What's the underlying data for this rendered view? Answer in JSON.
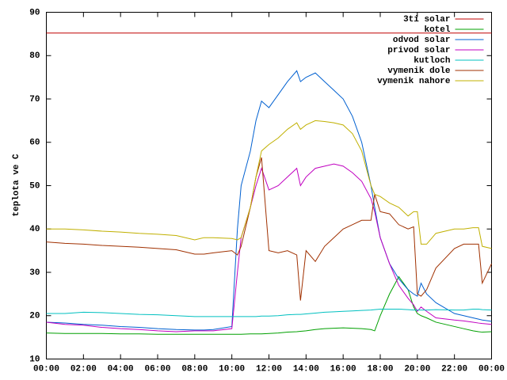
{
  "chart_data": {
    "type": "line",
    "y_label": "teplota ve C",
    "x": [
      0,
      1,
      2,
      3,
      4,
      5,
      6,
      7,
      8,
      8.5,
      9,
      10,
      10.3,
      10.5,
      11,
      11.3,
      11.6,
      12,
      12.5,
      13,
      13.5,
      13.7,
      14,
      14.5,
      15,
      15.5,
      16,
      16.5,
      17,
      17.5,
      17.7,
      18,
      18.5,
      19,
      19.5,
      19.8,
      20,
      20.2,
      20.5,
      21,
      22,
      22.5,
      23,
      23.3,
      23.5,
      24
    ],
    "xlim": [
      0,
      24
    ],
    "xticks": [
      {
        "value": 0,
        "label": "00:00"
      },
      {
        "value": 2,
        "label": "02:00"
      },
      {
        "value": 4,
        "label": "04:00"
      },
      {
        "value": 6,
        "label": "06:00"
      },
      {
        "value": 8,
        "label": "08:00"
      },
      {
        "value": 10,
        "label": "10:00"
      },
      {
        "value": 12,
        "label": "12:00"
      },
      {
        "value": 14,
        "label": "14:00"
      },
      {
        "value": 16,
        "label": "16:00"
      },
      {
        "value": 18,
        "label": "18:00"
      },
      {
        "value": 20,
        "label": "20:00"
      },
      {
        "value": 22,
        "label": "22:00"
      },
      {
        "value": 24,
        "label": "00:00"
      }
    ],
    "ylim": [
      10,
      90
    ],
    "yticks": [
      10,
      20,
      30,
      40,
      50,
      60,
      70,
      80,
      90
    ],
    "grid": false,
    "legend": "top-right",
    "series": [
      {
        "name": "3ti solar",
        "color": "#c00000",
        "values": [
          85.2,
          85.2,
          85.2,
          85.2,
          85.2,
          85.2,
          85.2,
          85.2,
          85.2,
          85.2,
          85.2,
          85.2,
          85.2,
          85.2,
          85.2,
          85.2,
          85.2,
          85.2,
          85.2,
          85.2,
          85.2,
          85.2,
          85.2,
          85.2,
          85.2,
          85.2,
          85.2,
          85.2,
          85.2,
          85.2,
          85.2,
          85.2,
          85.2,
          85.2,
          85.2,
          85.2,
          85.2,
          85.2,
          85.2,
          85.2,
          85.2,
          85.2,
          85.2,
          85.2,
          85.2,
          85.2
        ]
      },
      {
        "name": "kotel",
        "color": "#00a000",
        "values": [
          16,
          15.9,
          15.9,
          15.9,
          15.8,
          15.8,
          15.7,
          15.7,
          15.7,
          15.7,
          15.7,
          15.7,
          15.7,
          15.7,
          15.8,
          15.8,
          15.8,
          15.9,
          16,
          16.2,
          16.3,
          16.4,
          16.5,
          16.8,
          17,
          17.1,
          17.2,
          17.1,
          17,
          16.8,
          16.5,
          20,
          25,
          29,
          26,
          22,
          20.5,
          20,
          19.5,
          18.5,
          17.5,
          17,
          16.5,
          16.3,
          16.2,
          16.3
        ]
      },
      {
        "name": "odvod solar",
        "color": "#0060d0",
        "values": [
          18.5,
          18.3,
          18,
          17.8,
          17.5,
          17.3,
          17,
          16.8,
          16.7,
          16.7,
          16.8,
          17.5,
          40,
          50,
          58,
          65,
          69.5,
          68,
          71,
          74,
          76.5,
          74,
          75,
          76,
          74,
          72,
          70,
          66,
          60,
          50,
          45,
          38,
          32,
          28.5,
          26,
          25,
          24.5,
          27.5,
          25,
          23,
          20.5,
          20,
          19.5,
          19.2,
          19,
          18.7
        ]
      },
      {
        "name": "privod solar",
        "color": "#c000c0",
        "values": [
          18.5,
          18,
          17.8,
          17.3,
          17,
          16.8,
          16.5,
          16.3,
          16.5,
          16.5,
          16.5,
          17,
          30,
          38,
          45,
          50,
          54,
          49,
          50,
          52,
          54,
          50,
          52,
          54,
          54.5,
          55,
          54.5,
          53,
          51,
          47,
          44,
          38,
          32,
          27,
          24,
          22.5,
          21,
          22,
          21,
          19.5,
          19,
          18.8,
          18.5,
          18.3,
          18.2,
          18
        ]
      },
      {
        "name": "kutloch",
        "color": "#00c0c0",
        "values": [
          20.5,
          20.5,
          20.8,
          20.7,
          20.5,
          20.3,
          20.2,
          20,
          19.8,
          19.8,
          19.8,
          19.8,
          19.8,
          19.8,
          19.8,
          19.8,
          19.9,
          19.9,
          20,
          20.2,
          20.3,
          20.3,
          20.4,
          20.6,
          20.8,
          20.9,
          21,
          21.1,
          21.2,
          21.3,
          21.4,
          21.5,
          21.5,
          21.5,
          21.4,
          21.3,
          21.3,
          21.3,
          21.3,
          21.4,
          21.3,
          21.3,
          21.5,
          21.5,
          21.4,
          21.3
        ]
      },
      {
        "name": "vymenik dole",
        "color": "#a03000",
        "values": [
          37,
          36.7,
          36.5,
          36.2,
          36,
          35.8,
          35.5,
          35.2,
          34.2,
          34.2,
          34.5,
          35,
          34,
          36,
          45,
          52,
          56.5,
          35,
          34.5,
          35,
          34,
          23.5,
          35,
          32.5,
          36,
          38,
          40,
          41,
          42,
          42,
          48,
          44,
          43.5,
          41,
          40,
          40.5,
          25,
          24.5,
          26,
          31,
          35.5,
          36.5,
          36.5,
          36.5,
          27.5,
          32
        ]
      },
      {
        "name": "vymenik nahore",
        "color": "#c0b000",
        "values": [
          40,
          40,
          39.8,
          39.5,
          39.3,
          39,
          38.8,
          38.5,
          37.5,
          38,
          38,
          37.8,
          37.5,
          38,
          45,
          52,
          58,
          59.5,
          61,
          63,
          64.5,
          63,
          64,
          65,
          64.8,
          64.5,
          64,
          62,
          58,
          50,
          48,
          47.5,
          46,
          45,
          43,
          44,
          44,
          36.5,
          36.5,
          39,
          40,
          40,
          40.3,
          40.3,
          36,
          35.5
        ]
      }
    ]
  }
}
